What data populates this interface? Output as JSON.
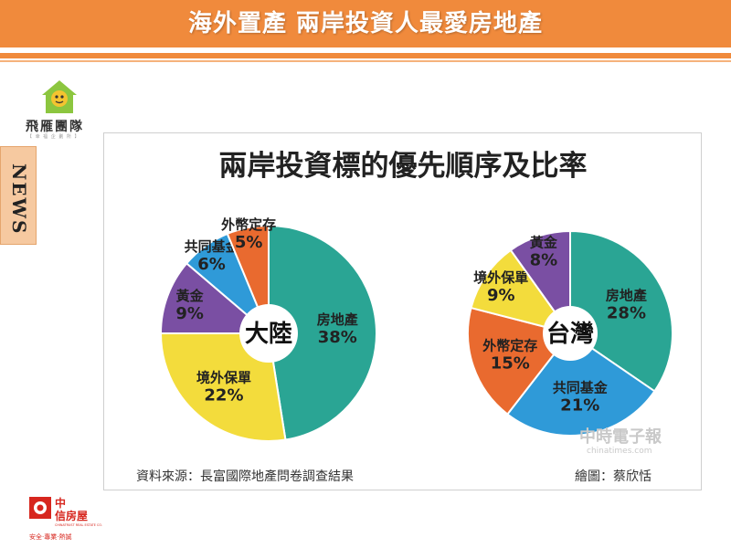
{
  "header": {
    "title": "海外置產 兩岸投資人最愛房地產",
    "bar_color": "#f08a3c"
  },
  "sidebar": {
    "brand_name": "飛雁團隊",
    "brand_tagline": "【 幸 福 企 劃 所 】",
    "news_label": "NEWS"
  },
  "footer_logo": {
    "name_line1": "中",
    "name_line2": "信房屋",
    "english": "CHINATRUST REAL ESTATE CO.",
    "slogan": "安全‧專業‧熱誠"
  },
  "chart_data": [
    {
      "type": "pie",
      "center_label": "大陸",
      "slices": [
        {
          "label": "房地產",
          "value": 38,
          "color": "#2aa594"
        },
        {
          "label": "境外保單",
          "value": 22,
          "color": "#f3dc3c"
        },
        {
          "label": "黃金",
          "value": 9,
          "color": "#7a4fa3"
        },
        {
          "label": "共同基金",
          "value": 6,
          "color": "#2f9ad8"
        },
        {
          "label": "外幣定存",
          "value": 5,
          "color": "#e96a2f"
        }
      ]
    },
    {
      "type": "pie",
      "center_label": "台灣",
      "slices": [
        {
          "label": "房地產",
          "value": 28,
          "color": "#2aa594"
        },
        {
          "label": "共同基金",
          "value": 21,
          "color": "#2f9ad8"
        },
        {
          "label": "外幣定存",
          "value": 15,
          "color": "#e96a2f"
        },
        {
          "label": "境外保單",
          "value": 9,
          "color": "#f3dc3c"
        },
        {
          "label": "黃金",
          "value": 8,
          "color": "#7a4fa3"
        }
      ]
    }
  ],
  "infographic": {
    "title": "兩岸投資標的優先順序及比率",
    "source": "資料來源：長富國際地產問卷調查結果",
    "credit": "繪圖：蔡欣恬",
    "watermark_cn": "中時電子報",
    "watermark_en": "chinatimes.com"
  }
}
